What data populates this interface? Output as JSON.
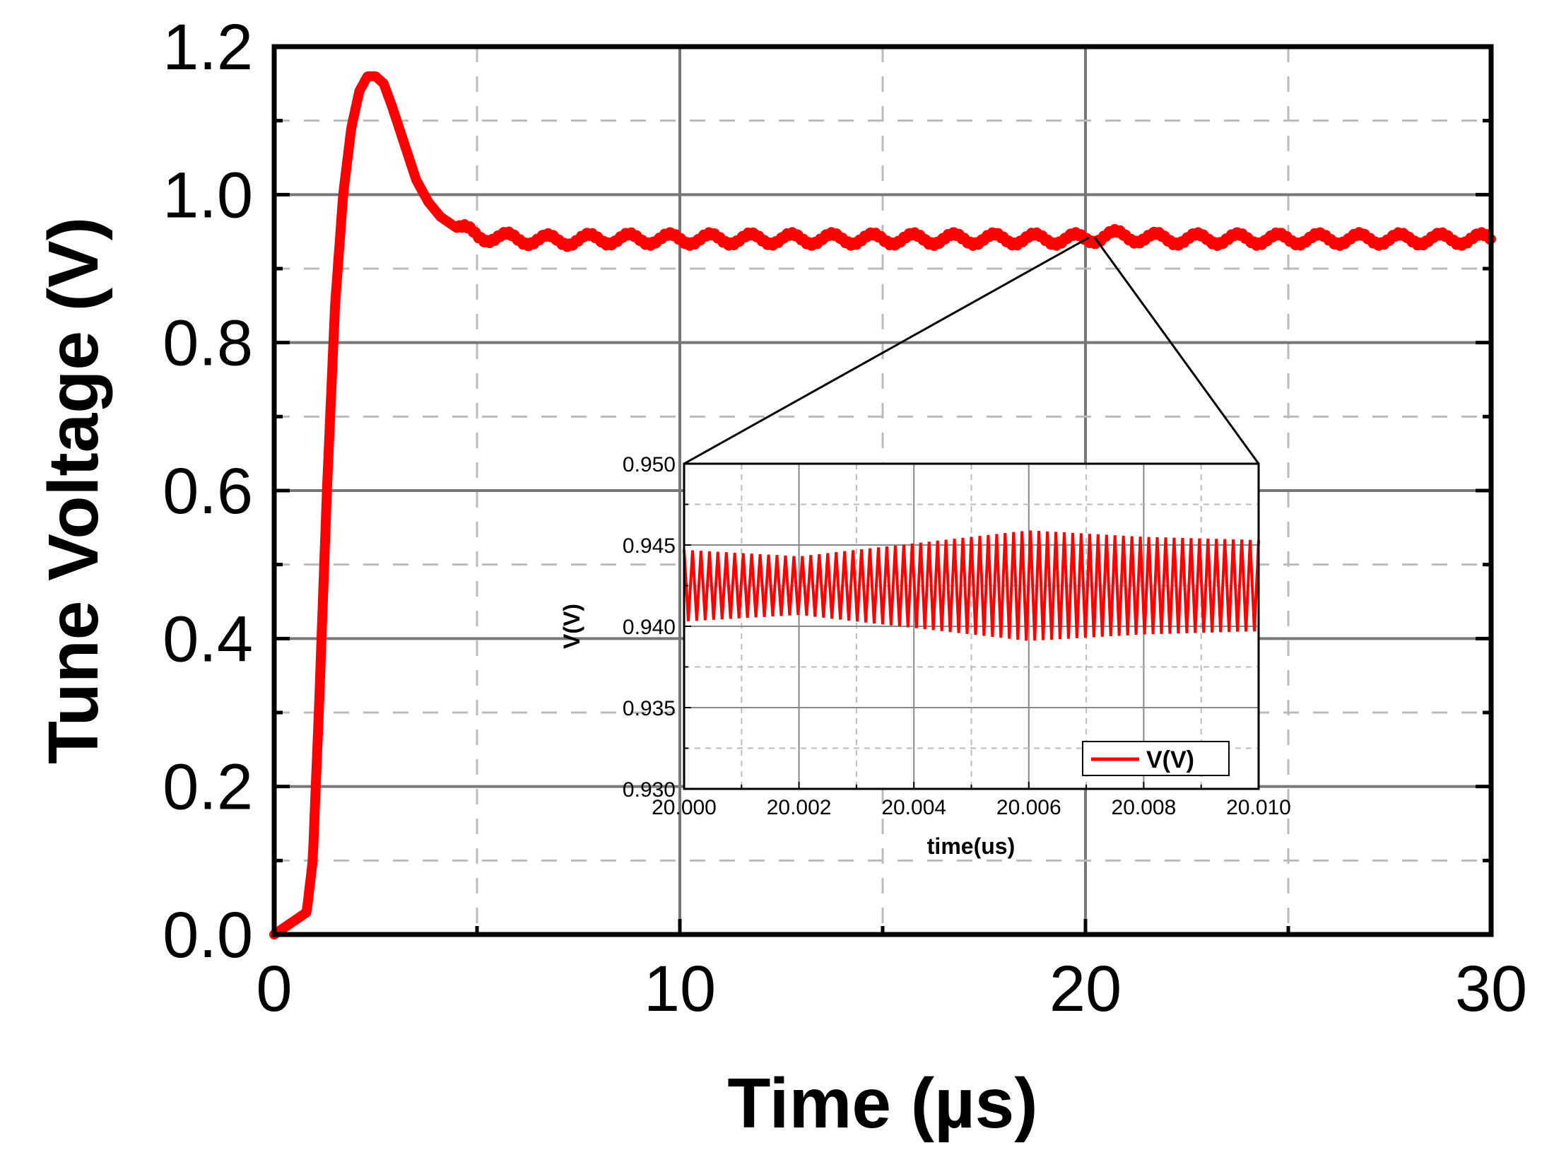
{
  "chart_data": [
    {
      "id": "main",
      "type": "line",
      "xlabel": "Time (µs)",
      "ylabel": "Tune Voltage (V)",
      "xlim": [
        0,
        30
      ],
      "ylim": [
        0,
        1.2
      ],
      "xticks": [
        "0",
        "10",
        "20",
        "30"
      ],
      "yticks": [
        "0.0",
        "0.2",
        "0.4",
        "0.6",
        "0.8",
        "1.0",
        "1.2"
      ],
      "grid": true,
      "series": [
        {
          "name": "Tune Voltage",
          "color": "#ff0000",
          "x": [
            0,
            0.4,
            0.8,
            0.95,
            1.1,
            1.3,
            1.5,
            1.7,
            1.9,
            2.1,
            2.3,
            2.5,
            2.7,
            2.9,
            3.2,
            3.5,
            3.8,
            4.1,
            4.5,
            5,
            5.5,
            6,
            7,
            8,
            9,
            10,
            12,
            14,
            16,
            18,
            20,
            20.5,
            22,
            24,
            26,
            28,
            30
          ],
          "y": [
            0.0,
            0.015,
            0.03,
            0.1,
            0.3,
            0.6,
            0.85,
            1.0,
            1.09,
            1.14,
            1.16,
            1.16,
            1.15,
            1.12,
            1.07,
            1.02,
            0.99,
            0.97,
            0.955,
            0.945,
            0.942,
            0.94,
            0.938,
            0.94,
            0.94,
            0.94,
            0.94,
            0.94,
            0.94,
            0.94,
            0.94,
            0.945,
            0.94,
            0.94,
            0.94,
            0.94,
            0.94
          ]
        }
      ],
      "ripple": {
        "from_x": 4.5,
        "period": 1.0,
        "amplitude": 0.007
      }
    },
    {
      "id": "inset",
      "type": "line",
      "xlabel": "time(us)",
      "ylabel": "V(V)",
      "xlim": [
        20.0,
        20.01
      ],
      "ylim": [
        0.93,
        0.95
      ],
      "xticks": [
        "20.000",
        "20.002",
        "20.004",
        "20.006",
        "20.008",
        "20.010"
      ],
      "yticks": [
        "0.930",
        "0.935",
        "0.940",
        "0.945",
        "0.950"
      ],
      "grid": true,
      "legend": {
        "label": "V(V)",
        "position": "bottom-right"
      },
      "series": [
        {
          "name": "V(V)",
          "color": "#ff0000",
          "center": 0.9425,
          "cycles": 68,
          "amplitude_profile": {
            "x": [
              20.0,
              20.002,
              20.004,
              20.006,
              20.008,
              20.01
            ],
            "amp": [
              0.0022,
              0.0018,
              0.0026,
              0.0034,
              0.003,
              0.0028
            ]
          }
        }
      ]
    }
  ]
}
